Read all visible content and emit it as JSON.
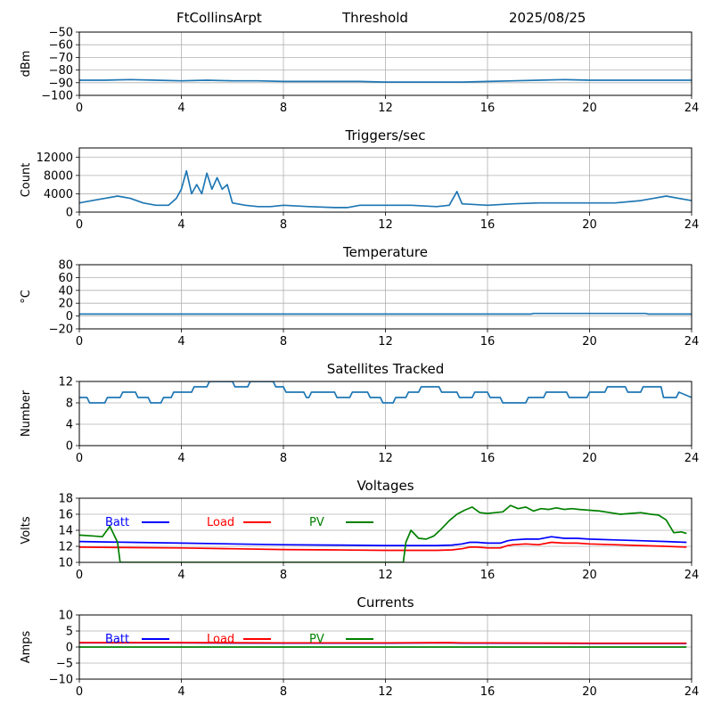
{
  "header": {
    "station": "FtCollinsArpt",
    "mode": "Threshold",
    "date": "2025/08/25"
  },
  "chart_data": [
    {
      "type": "line",
      "title": "",
      "xlabel": "",
      "ylabel": "dBm",
      "xlim": [
        0,
        24
      ],
      "ylim": [
        -100,
        -50
      ],
      "x_ticks": [
        0,
        4,
        8,
        12,
        16,
        20,
        24
      ],
      "y_ticks": [
        -100,
        -90,
        -80,
        -70,
        -60,
        -50
      ],
      "grid": true,
      "series": [
        {
          "name": "",
          "color": "#1f77b4",
          "x": [
            0,
            1,
            2,
            3,
            4,
            5,
            6,
            7,
            8,
            9,
            10,
            11,
            12,
            13,
            14,
            15,
            16,
            17,
            18,
            19,
            20,
            21,
            22,
            23,
            24
          ],
          "y": [
            -88,
            -88,
            -87.5,
            -88,
            -88.5,
            -88,
            -88.5,
            -88.5,
            -89,
            -89,
            -89,
            -89,
            -89.5,
            -89.5,
            -89.5,
            -89.5,
            -89,
            -88.5,
            -88,
            -87.5,
            -88,
            -88,
            -88,
            -88,
            -88
          ]
        }
      ]
    },
    {
      "type": "line",
      "title": "Triggers/sec",
      "xlabel": "",
      "ylabel": "Count",
      "xlim": [
        0,
        24
      ],
      "ylim": [
        0,
        14000
      ],
      "x_ticks": [
        0,
        4,
        8,
        12,
        16,
        20,
        24
      ],
      "y_ticks": [
        0,
        4000,
        8000,
        12000
      ],
      "grid": true,
      "series": [
        {
          "name": "",
          "color": "#1f77b4",
          "x": [
            0,
            0.5,
            1,
            1.5,
            2,
            2.5,
            3,
            3.5,
            3.8,
            4,
            4.2,
            4.4,
            4.6,
            4.8,
            5,
            5.2,
            5.4,
            5.6,
            5.8,
            6,
            6.5,
            7,
            7.5,
            8,
            9,
            10,
            10.5,
            11,
            12,
            13,
            14,
            14.5,
            14.8,
            15,
            16,
            17,
            18,
            19,
            20,
            21,
            22,
            22.5,
            23,
            23.5,
            24
          ],
          "y": [
            2000,
            2500,
            3000,
            3500,
            3000,
            2000,
            1500,
            1500,
            3000,
            5000,
            9000,
            4000,
            6000,
            4000,
            8500,
            5000,
            7500,
            5000,
            6000,
            2000,
            1500,
            1200,
            1200,
            1500,
            1200,
            1000,
            1000,
            1500,
            1500,
            1500,
            1200,
            1500,
            4500,
            1800,
            1500,
            1800,
            2000,
            2000,
            2000,
            2000,
            2500,
            3000,
            3500,
            3000,
            2500
          ]
        }
      ]
    },
    {
      "type": "line",
      "title": "Temperature",
      "xlabel": "",
      "ylabel": "°C",
      "xlim": [
        0,
        24
      ],
      "ylim": [
        -20,
        80
      ],
      "x_ticks": [
        0,
        4,
        8,
        12,
        16,
        20,
        24
      ],
      "y_ticks": [
        -20,
        0,
        20,
        40,
        60,
        80
      ],
      "grid": true,
      "series": [
        {
          "name": "",
          "color": "#1f77b4",
          "x": [
            0,
            17.7,
            17.8,
            22.2,
            22.3,
            24
          ],
          "y": [
            3,
            3,
            4,
            4,
            3,
            3
          ]
        }
      ]
    },
    {
      "type": "line",
      "title": "Satellites Tracked",
      "xlabel": "",
      "ylabel": "Number",
      "xlim": [
        0,
        24
      ],
      "ylim": [
        0,
        12
      ],
      "x_ticks": [
        0,
        4,
        8,
        12,
        16,
        20,
        24
      ],
      "y_ticks": [
        0,
        4,
        8,
        12
      ],
      "grid": true,
      "series": [
        {
          "name": "",
          "color": "#1f77b4",
          "x": [
            0,
            0.3,
            0.4,
            1,
            1.1,
            1.6,
            1.7,
            2.2,
            2.3,
            2.7,
            2.8,
            3.2,
            3.3,
            3.6,
            3.7,
            4.4,
            4.5,
            5.0,
            5.1,
            6.0,
            6.1,
            6.6,
            6.7,
            7.6,
            7.7,
            8.0,
            8.1,
            8.8,
            8.9,
            9.0,
            9.1,
            10.0,
            10.1,
            10.6,
            10.7,
            11.3,
            11.4,
            11.8,
            11.9,
            12.3,
            12.4,
            12.8,
            12.9,
            13.3,
            13.4,
            14.1,
            14.2,
            14.8,
            14.9,
            15.4,
            15.5,
            16.0,
            16.1,
            16.5,
            16.6,
            17.5,
            17.6,
            18.2,
            18.3,
            19.1,
            19.2,
            19.9,
            20.0,
            20.6,
            20.7,
            21.4,
            21.5,
            22.0,
            22.1,
            22.8,
            22.9,
            23.4,
            23.5,
            24
          ],
          "y": [
            9,
            9,
            8,
            8,
            9,
            9,
            10,
            10,
            9,
            9,
            8,
            8,
            9,
            9,
            10,
            10,
            11,
            11,
            12,
            12,
            11,
            11,
            12,
            12,
            11,
            11,
            10,
            10,
            9,
            9,
            10,
            10,
            9,
            9,
            10,
            10,
            9,
            9,
            8,
            8,
            9,
            9,
            10,
            10,
            11,
            11,
            10,
            10,
            9,
            9,
            10,
            10,
            9,
            9,
            8,
            8,
            9,
            9,
            10,
            10,
            9,
            9,
            10,
            10,
            11,
            11,
            10,
            10,
            11,
            11,
            9,
            9,
            10,
            9
          ]
        }
      ]
    },
    {
      "type": "line",
      "title": "Voltages",
      "xlabel": "",
      "ylabel": "Volts",
      "xlim": [
        0,
        24
      ],
      "ylim": [
        10,
        18
      ],
      "x_ticks": [
        0,
        4,
        8,
        12,
        16,
        20,
        24
      ],
      "y_ticks": [
        10,
        12,
        14,
        16,
        18
      ],
      "grid": true,
      "legend": "top-left",
      "series": [
        {
          "name": "Batt",
          "color": "#0000ff",
          "x": [
            0,
            2,
            4,
            6,
            8,
            10,
            12,
            14,
            14.6,
            15,
            15.3,
            15.6,
            16,
            16.5,
            16.8,
            17,
            17.5,
            18,
            18.5,
            19,
            19.5,
            20,
            21,
            22,
            23,
            23.8
          ],
          "y": [
            12.6,
            12.5,
            12.4,
            12.3,
            12.2,
            12.15,
            12.1,
            12.1,
            12.15,
            12.3,
            12.5,
            12.5,
            12.4,
            12.4,
            12.7,
            12.8,
            12.9,
            12.9,
            13.2,
            13.0,
            13.0,
            12.9,
            12.8,
            12.7,
            12.6,
            12.5
          ]
        },
        {
          "name": "Load",
          "color": "#ff0000",
          "x": [
            0,
            2,
            4,
            6,
            8,
            10,
            12,
            14,
            14.6,
            15,
            15.3,
            15.6,
            16,
            16.5,
            16.8,
            17,
            17.5,
            18,
            18.5,
            19,
            19.5,
            20,
            21,
            22,
            23,
            23.8
          ],
          "y": [
            11.9,
            11.85,
            11.8,
            11.7,
            11.6,
            11.55,
            11.5,
            11.5,
            11.55,
            11.7,
            11.9,
            11.9,
            11.8,
            11.8,
            12.1,
            12.2,
            12.3,
            12.2,
            12.5,
            12.4,
            12.4,
            12.3,
            12.2,
            12.1,
            12.0,
            11.9
          ]
        },
        {
          "name": "PV",
          "color": "#008000",
          "x": [
            0,
            0.5,
            0.9,
            1.2,
            1.5,
            1.6,
            12.7,
            12.8,
            13.0,
            13.3,
            13.6,
            13.9,
            14.2,
            14.5,
            14.8,
            15.1,
            15.4,
            15.7,
            16.0,
            16.3,
            16.6,
            16.9,
            17.2,
            17.5,
            17.8,
            18.1,
            18.4,
            18.7,
            19.0,
            19.3,
            19.6,
            20.0,
            20.4,
            20.8,
            21.2,
            21.6,
            22.0,
            22.4,
            22.7,
            23.0,
            23.3,
            23.6,
            23.8
          ],
          "y": [
            13.4,
            13.3,
            13.2,
            14.5,
            12.5,
            10,
            10,
            12.5,
            14.0,
            13.0,
            12.9,
            13.3,
            14.2,
            15.2,
            16.0,
            16.5,
            16.9,
            16.2,
            16.1,
            16.2,
            16.3,
            17.1,
            16.7,
            16.9,
            16.4,
            16.7,
            16.6,
            16.8,
            16.6,
            16.7,
            16.6,
            16.5,
            16.4,
            16.2,
            16.0,
            16.1,
            16.2,
            16.0,
            15.9,
            15.3,
            13.7,
            13.8,
            13.6
          ]
        }
      ]
    },
    {
      "type": "line",
      "title": "Currents",
      "xlabel": "",
      "ylabel": "Amps",
      "xlim": [
        0,
        24
      ],
      "ylim": [
        -10,
        10
      ],
      "x_ticks": [
        0,
        4,
        8,
        12,
        16,
        20,
        24
      ],
      "y_ticks": [
        -10,
        -5,
        0,
        5,
        10
      ],
      "grid": true,
      "legend": "top-left",
      "series": [
        {
          "name": "Batt",
          "color": "#0000ff",
          "x": [
            0,
            4,
            8,
            12,
            14.5,
            15,
            16,
            20,
            23.8
          ],
          "y": [
            1.3,
            1.3,
            1.2,
            1.2,
            1.3,
            1.2,
            1.2,
            1.1,
            1.1
          ]
        },
        {
          "name": "Load",
          "color": "#ff0000",
          "x": [
            0,
            4,
            8,
            12,
            14.5,
            15,
            16,
            20,
            23.8
          ],
          "y": [
            1.4,
            1.4,
            1.3,
            1.3,
            1.4,
            1.3,
            1.3,
            1.2,
            1.2
          ]
        },
        {
          "name": "PV",
          "color": "#008000",
          "x": [
            0,
            4,
            8,
            12,
            16,
            20,
            23.8
          ],
          "y": [
            0,
            0,
            0,
            0,
            0,
            0,
            0
          ]
        }
      ]
    }
  ]
}
